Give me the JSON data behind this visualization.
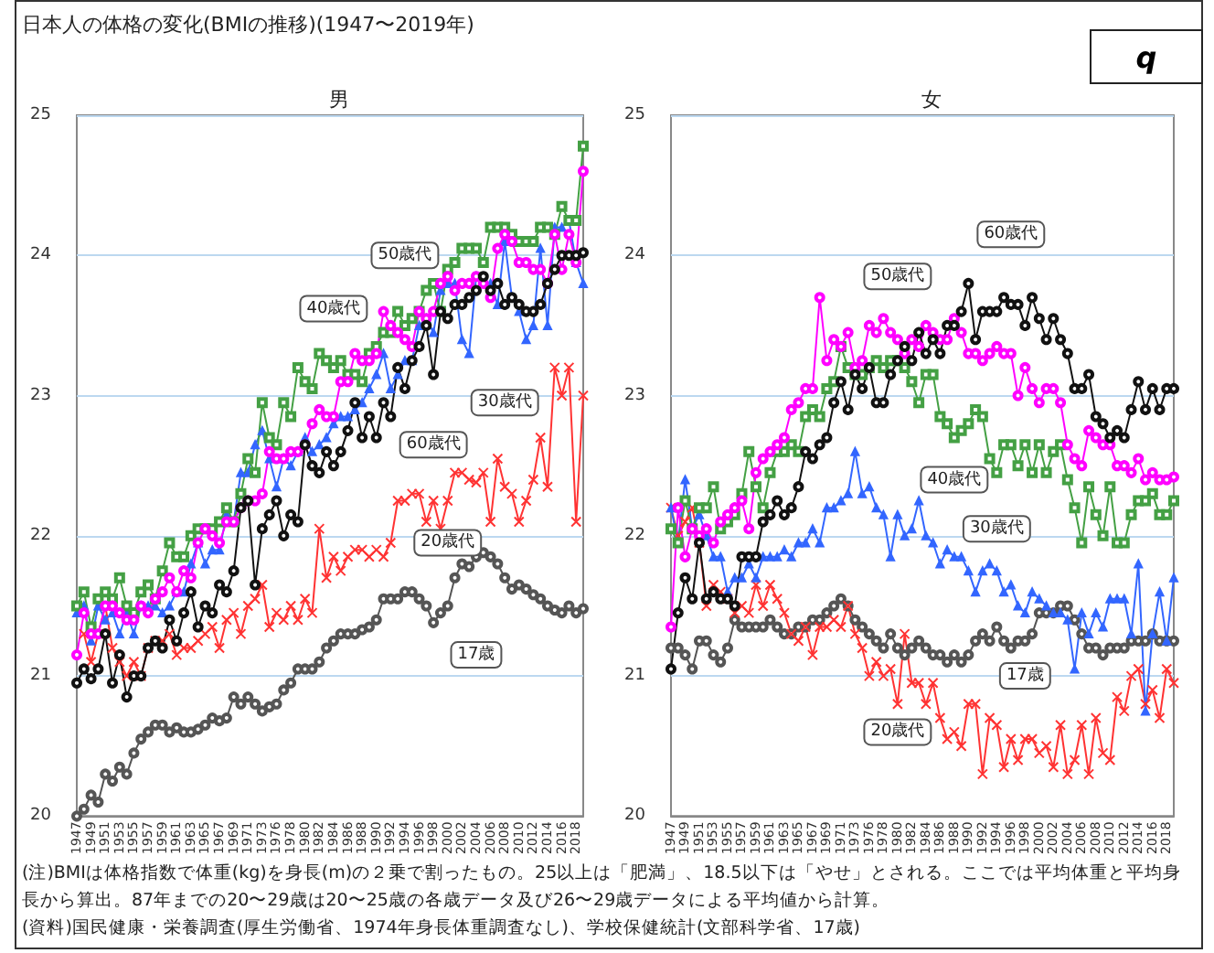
{
  "chart_data": [
    {
      "type": "line",
      "title": "日本人の体格の変化(BMIの推移)(1947〜2019年)",
      "subtitle": "男",
      "categories": [
        "1947",
        null,
        "1949",
        null,
        "1951",
        null,
        "1953",
        null,
        "1955",
        null,
        "1957",
        null,
        "1959",
        null,
        "1961",
        null,
        "1963",
        null,
        "1965",
        null,
        "1967",
        null,
        "1969",
        null,
        "1971",
        null,
        "1973",
        null,
        "1976",
        null,
        "1978",
        null,
        "1980",
        null,
        "1982",
        null,
        "1984",
        null,
        "1986",
        null,
        "1988",
        null,
        "1990",
        null,
        "1992",
        null,
        "1994",
        null,
        "1996",
        null,
        "1998",
        null,
        "2000",
        null,
        "2002",
        null,
        "2004",
        null,
        "2006",
        null,
        "2008",
        null,
        "2010",
        null,
        "2012",
        null,
        "2014",
        null,
        "2016",
        null,
        "2018",
        null
      ],
      "ylim": [
        20,
        25
      ],
      "yticks": [
        20,
        21,
        22,
        23,
        24,
        25
      ],
      "grid": "y",
      "line_style": "solid",
      "series": [
        {
          "color": "#555555",
          "marker": "circle",
          "values": [
            20.0,
            20.05,
            20.15,
            20.1,
            20.3,
            20.25,
            20.35,
            20.3,
            20.45,
            20.55,
            20.6,
            20.65,
            20.65,
            20.6,
            20.63,
            20.6,
            20.6,
            20.62,
            20.65,
            20.7,
            20.68,
            20.7,
            20.85,
            20.8,
            20.85,
            20.8,
            20.75,
            20.78,
            20.8,
            20.9,
            20.95,
            21.05,
            21.05,
            21.05,
            21.1,
            21.2,
            21.25,
            21.3,
            21.3,
            21.3,
            21.33,
            21.35,
            21.4,
            21.55,
            21.55,
            21.55,
            21.6,
            21.6,
            21.55,
            21.5,
            21.38,
            21.45,
            21.5,
            21.7,
            21.8,
            21.78,
            21.85,
            21.88,
            21.85,
            21.8,
            21.7,
            21.62,
            21.65,
            21.62,
            21.58,
            21.55,
            21.5,
            21.47,
            21.45,
            21.5,
            21.45,
            21.48
          ]
        },
        {
          "color": "#ff3333",
          "marker": "cross",
          "values": [
            null,
            21.3,
            21.1,
            21.3,
            21.5,
            21.2,
            21.1,
            21.0,
            21.1,
            21.0,
            21.2,
            21.25,
            21.25,
            21.3,
            21.15,
            21.2,
            21.2,
            21.25,
            21.3,
            21.35,
            21.2,
            21.4,
            21.45,
            21.3,
            21.5,
            21.55,
            21.65,
            21.35,
            21.45,
            21.4,
            21.5,
            21.4,
            21.55,
            21.45,
            22.05,
            21.7,
            21.85,
            21.75,
            21.85,
            21.9,
            21.9,
            21.85,
            21.9,
            21.85,
            21.95,
            22.25,
            22.25,
            22.3,
            22.3,
            22.1,
            22.25,
            22.05,
            22.25,
            22.45,
            22.45,
            22.4,
            22.38,
            22.45,
            22.1,
            22.55,
            22.35,
            22.3,
            22.1,
            22.25,
            22.4,
            22.7,
            22.35,
            23.2,
            23.0,
            23.2,
            22.1,
            23.0
          ]
        },
        {
          "color": "#3366ff",
          "marker": "triangle",
          "values": [
            21.45,
            21.5,
            21.25,
            21.5,
            21.4,
            21.45,
            21.3,
            21.45,
            21.3,
            21.5,
            21.5,
            21.5,
            21.45,
            21.5,
            21.6,
            21.6,
            21.8,
            21.95,
            21.8,
            21.9,
            21.9,
            22.15,
            22.1,
            22.45,
            22.45,
            22.65,
            22.75,
            22.55,
            22.35,
            22.55,
            22.5,
            22.6,
            22.7,
            22.6,
            22.65,
            22.7,
            22.8,
            22.85,
            22.85,
            22.9,
            22.95,
            23.05,
            23.15,
            23.3,
            23.05,
            23.15,
            23.25,
            23.25,
            23.5,
            23.55,
            23.45,
            23.75,
            23.8,
            23.8,
            23.4,
            23.3,
            23.85,
            23.8,
            23.8,
            23.65,
            24.1,
            23.7,
            23.6,
            23.4,
            23.5,
            24.05,
            23.5,
            24.2,
            24.2,
            24.25,
            23.95,
            23.8
          ]
        },
        {
          "color": "#44a044",
          "marker": "square",
          "values": [
            21.5,
            21.6,
            21.35,
            21.55,
            21.6,
            21.55,
            21.7,
            21.5,
            21.45,
            21.6,
            21.65,
            21.55,
            21.75,
            21.95,
            21.85,
            21.85,
            22.0,
            22.05,
            22.05,
            22.05,
            22.1,
            22.2,
            22.1,
            22.3,
            22.55,
            22.45,
            22.95,
            22.7,
            22.65,
            22.95,
            22.85,
            23.2,
            23.1,
            23.05,
            23.3,
            23.25,
            23.2,
            23.25,
            23.15,
            23.15,
            23.1,
            23.3,
            23.35,
            23.45,
            23.45,
            23.6,
            23.5,
            23.55,
            23.6,
            23.75,
            23.8,
            23.6,
            23.9,
            23.95,
            24.05,
            24.05,
            24.05,
            23.95,
            24.2,
            24.2,
            24.2,
            24.15,
            24.1,
            24.1,
            24.1,
            24.2,
            24.2,
            24.15,
            24.35,
            24.25,
            24.25,
            24.78
          ]
        },
        {
          "color": "#ff00ff",
          "marker": "circle",
          "values": [
            21.15,
            21.45,
            21.3,
            21.3,
            21.5,
            21.5,
            21.45,
            21.4,
            21.4,
            21.5,
            21.45,
            21.55,
            21.6,
            21.7,
            21.6,
            21.75,
            21.7,
            21.95,
            22.05,
            22.0,
            21.95,
            22.1,
            22.1,
            22.2,
            22.25,
            22.25,
            22.3,
            22.6,
            22.55,
            22.55,
            22.6,
            22.6,
            22.65,
            22.8,
            22.9,
            22.85,
            22.85,
            23.1,
            23.1,
            23.3,
            23.25,
            23.25,
            23.3,
            23.6,
            23.5,
            23.45,
            23.4,
            23.35,
            23.6,
            23.55,
            23.6,
            23.8,
            23.85,
            23.75,
            23.8,
            23.8,
            23.85,
            23.8,
            23.7,
            24.05,
            24.15,
            24.1,
            23.95,
            23.95,
            23.9,
            23.9,
            23.8,
            24.15,
            23.9,
            24.15,
            23.95,
            24.6
          ]
        },
        {
          "color": "#111111",
          "marker": "circle",
          "values": [
            20.95,
            21.05,
            20.98,
            21.05,
            21.3,
            20.95,
            21.15,
            20.85,
            21.0,
            21.0,
            21.2,
            21.25,
            21.2,
            21.4,
            21.25,
            21.45,
            21.6,
            21.35,
            21.5,
            21.45,
            21.65,
            21.6,
            21.75,
            22.2,
            22.25,
            21.65,
            22.05,
            22.15,
            22.25,
            22.0,
            22.15,
            22.1,
            22.65,
            22.5,
            22.45,
            22.6,
            22.5,
            22.6,
            22.75,
            22.95,
            22.7,
            22.85,
            22.7,
            22.95,
            22.85,
            23.2,
            23.05,
            23.25,
            23.35,
            23.5,
            23.15,
            23.6,
            23.55,
            23.65,
            23.65,
            23.7,
            23.75,
            23.85,
            23.75,
            23.8,
            23.65,
            23.7,
            23.65,
            23.6,
            23.6,
            23.65,
            23.8,
            23.9,
            24.0,
            24.0,
            24.0,
            24.02
          ]
        }
      ],
      "annotations": [
        {
          "text": "50歳代",
          "x": "1994",
          "y": 24.0
        },
        {
          "text": "40歳代",
          "x": "1984",
          "y": 23.62
        },
        {
          "text": "30歳代",
          "x": "2008",
          "y": 22.95
        },
        {
          "text": "60歳代",
          "x": "1998",
          "y": 22.65
        },
        {
          "text": "20歳代",
          "x": "2000",
          "y": 21.95
        },
        {
          "text": "17歳",
          "x": "2004",
          "y": 21.15
        },
        "(注)BMIは体格指数で体重(kg)を身長(m)の２乗で割ったもの。25以上は「肥満」、18.5以下は「やせ」とされる。ここでは平均体重と平均身長から算出。87年までの20〜29歳は20〜25歳の各歳データ及び26〜29歳データによる平均値から計算。",
        "(資料)国民健康・栄養調査(厚生労働省、1974年身長体重調査なし)、学校保健統計(文部科学省、17歳)"
      ]
    },
    {
      "type": "line",
      "subtitle": "女",
      "categories": [
        "1947",
        null,
        "1949",
        null,
        "1951",
        null,
        "1953",
        null,
        "1955",
        null,
        "1957",
        null,
        "1959",
        null,
        "1961",
        null,
        "1963",
        null,
        "1965",
        null,
        "1967",
        null,
        "1969",
        null,
        "1971",
        null,
        "1973",
        null,
        "1976",
        null,
        "1978",
        null,
        "1980",
        null,
        "1982",
        null,
        "1984",
        null,
        "1986",
        null,
        "1988",
        null,
        "1990",
        null,
        "1992",
        null,
        "1994",
        null,
        "1996",
        null,
        "1998",
        null,
        "2000",
        null,
        "2002",
        null,
        "2004",
        null,
        "2006",
        null,
        "2008",
        null,
        "2010",
        null,
        "2012",
        null,
        "2014",
        null,
        "2016",
        null,
        "2018",
        null
      ],
      "ylim": [
        20,
        25
      ],
      "yticks": [
        20,
        21,
        22,
        23,
        24,
        25
      ],
      "grid": "y",
      "line_style": "solid",
      "series": [
        {
          "color": "#555555",
          "marker": "circle",
          "values": [
            21.2,
            21.2,
            21.15,
            21.05,
            21.25,
            21.25,
            21.15,
            21.1,
            21.2,
            21.4,
            21.35,
            21.35,
            21.35,
            21.35,
            21.4,
            21.35,
            21.3,
            21.3,
            21.35,
            21.35,
            21.4,
            21.4,
            21.45,
            21.5,
            21.55,
            21.5,
            21.4,
            21.35,
            21.3,
            21.25,
            21.2,
            21.3,
            21.2,
            21.15,
            21.2,
            21.25,
            21.2,
            21.15,
            21.15,
            21.1,
            21.15,
            21.1,
            21.15,
            21.25,
            21.3,
            21.25,
            21.35,
            21.25,
            21.2,
            21.25,
            21.25,
            21.3,
            21.45,
            21.45,
            21.45,
            21.5,
            21.5,
            21.4,
            21.3,
            21.2,
            21.2,
            21.15,
            21.2,
            21.2,
            21.2,
            21.25,
            21.25,
            21.25,
            21.3,
            21.25,
            21.25,
            21.25
          ]
        },
        {
          "color": "#ff3333",
          "marker": "cross",
          "values": [
            22.2,
            22.0,
            22.1,
            22.2,
            21.95,
            21.5,
            21.65,
            21.6,
            21.55,
            21.45,
            21.5,
            21.45,
            21.65,
            21.5,
            21.65,
            21.55,
            21.45,
            21.3,
            21.25,
            21.35,
            21.15,
            21.35,
            21.35,
            21.4,
            21.35,
            21.5,
            21.3,
            21.2,
            21.0,
            21.1,
            21.0,
            21.05,
            20.8,
            21.3,
            20.95,
            20.95,
            20.8,
            20.95,
            20.7,
            20.55,
            20.6,
            20.5,
            20.8,
            20.8,
            20.3,
            20.7,
            20.65,
            20.35,
            20.55,
            20.4,
            20.55,
            20.55,
            20.45,
            20.5,
            20.35,
            20.65,
            20.3,
            20.4,
            20.65,
            20.3,
            20.7,
            20.45,
            20.4,
            20.85,
            20.75,
            21.0,
            21.05,
            20.8,
            20.9,
            20.7,
            21.05,
            20.95
          ]
        },
        {
          "color": "#3366ff",
          "marker": "triangle",
          "values": [
            22.2,
            21.95,
            22.4,
            22.05,
            22.15,
            22.0,
            21.85,
            21.85,
            21.6,
            21.7,
            21.7,
            21.8,
            21.7,
            21.85,
            21.85,
            21.85,
            21.9,
            21.85,
            21.95,
            21.95,
            22.05,
            21.95,
            22.2,
            22.2,
            22.25,
            22.3,
            22.6,
            22.3,
            22.35,
            22.2,
            22.15,
            21.85,
            22.15,
            22.0,
            22.05,
            22.25,
            22.0,
            21.95,
            21.8,
            21.9,
            21.85,
            21.85,
            21.75,
            21.6,
            21.75,
            21.8,
            21.75,
            21.6,
            21.65,
            21.5,
            21.45,
            21.6,
            21.55,
            21.5,
            21.45,
            21.45,
            21.4,
            21.05,
            21.45,
            21.3,
            21.45,
            21.35,
            21.55,
            21.55,
            21.55,
            21.3,
            21.8,
            20.75,
            21.3,
            21.6,
            21.25,
            21.7
          ]
        },
        {
          "color": "#44a044",
          "marker": "square",
          "values": [
            22.05,
            21.95,
            22.25,
            22.05,
            22.2,
            22.2,
            22.35,
            22.05,
            22.1,
            22.15,
            22.3,
            22.6,
            22.35,
            22.2,
            22.45,
            22.6,
            22.6,
            22.65,
            22.6,
            22.85,
            22.9,
            22.85,
            23.05,
            23.1,
            23.35,
            23.2,
            23.15,
            23.15,
            23.2,
            23.25,
            23.2,
            23.25,
            23.25,
            23.2,
            23.1,
            22.95,
            23.15,
            23.15,
            22.85,
            22.8,
            22.7,
            22.75,
            22.8,
            22.9,
            22.85,
            22.55,
            22.45,
            22.65,
            22.65,
            22.5,
            22.65,
            22.45,
            22.65,
            22.45,
            22.6,
            22.65,
            22.4,
            22.2,
            21.95,
            22.35,
            22.15,
            22.0,
            22.35,
            21.95,
            21.95,
            22.15,
            22.25,
            22.25,
            22.3,
            22.15,
            22.15,
            22.25
          ]
        },
        {
          "color": "#ff00ff",
          "marker": "circle",
          "values": [
            21.35,
            22.2,
            21.85,
            22.05,
            22.0,
            22.05,
            21.95,
            22.1,
            22.15,
            22.2,
            22.25,
            22.05,
            22.45,
            22.55,
            22.6,
            22.65,
            22.7,
            22.9,
            22.95,
            23.05,
            23.05,
            23.7,
            23.25,
            23.4,
            23.35,
            23.45,
            23.2,
            23.25,
            23.5,
            23.45,
            23.55,
            23.45,
            23.4,
            23.3,
            23.4,
            23.35,
            23.5,
            23.45,
            23.4,
            23.4,
            23.55,
            23.45,
            23.3,
            23.3,
            23.25,
            23.3,
            23.35,
            23.3,
            23.3,
            23.0,
            23.2,
            23.05,
            22.95,
            23.05,
            23.05,
            22.95,
            22.65,
            22.55,
            22.5,
            22.75,
            22.7,
            22.65,
            22.65,
            22.5,
            22.5,
            22.45,
            22.55,
            22.4,
            22.45,
            22.4,
            22.4,
            22.42
          ]
        },
        {
          "color": "#111111",
          "marker": "circle",
          "values": [
            21.05,
            21.45,
            21.7,
            21.55,
            21.95,
            21.55,
            21.6,
            21.55,
            21.55,
            21.5,
            21.85,
            21.85,
            21.85,
            22.1,
            22.15,
            22.25,
            22.15,
            22.2,
            22.35,
            22.6,
            22.55,
            22.65,
            22.7,
            22.95,
            23.1,
            22.9,
            23.15,
            23.05,
            23.2,
            22.95,
            22.95,
            23.15,
            23.25,
            23.35,
            23.25,
            23.45,
            23.3,
            23.4,
            23.3,
            23.5,
            23.5,
            23.6,
            23.8,
            23.4,
            23.6,
            23.6,
            23.6,
            23.7,
            23.65,
            23.65,
            23.5,
            23.7,
            23.55,
            23.4,
            23.55,
            23.4,
            23.3,
            23.05,
            23.05,
            23.15,
            22.85,
            22.8,
            22.7,
            22.75,
            22.7,
            22.9,
            23.1,
            22.9,
            23.05,
            22.9,
            23.05,
            23.05
          ]
        }
      ],
      "annotations": [
        {
          "text": "60歳代",
          "x": "1996",
          "y": 24.15
        },
        {
          "text": "50歳代",
          "x": "1980",
          "y": 23.85
        },
        {
          "text": "40歳代",
          "x": "1988",
          "y": 22.4
        },
        {
          "text": "30歳代",
          "x": "1994",
          "y": 22.05
        },
        {
          "text": "17歳",
          "x": "1998",
          "y": 21.0
        },
        {
          "text": "20歳代",
          "x": "1980",
          "y": 20.6
        },
        "q"
      ]
    }
  ]
}
